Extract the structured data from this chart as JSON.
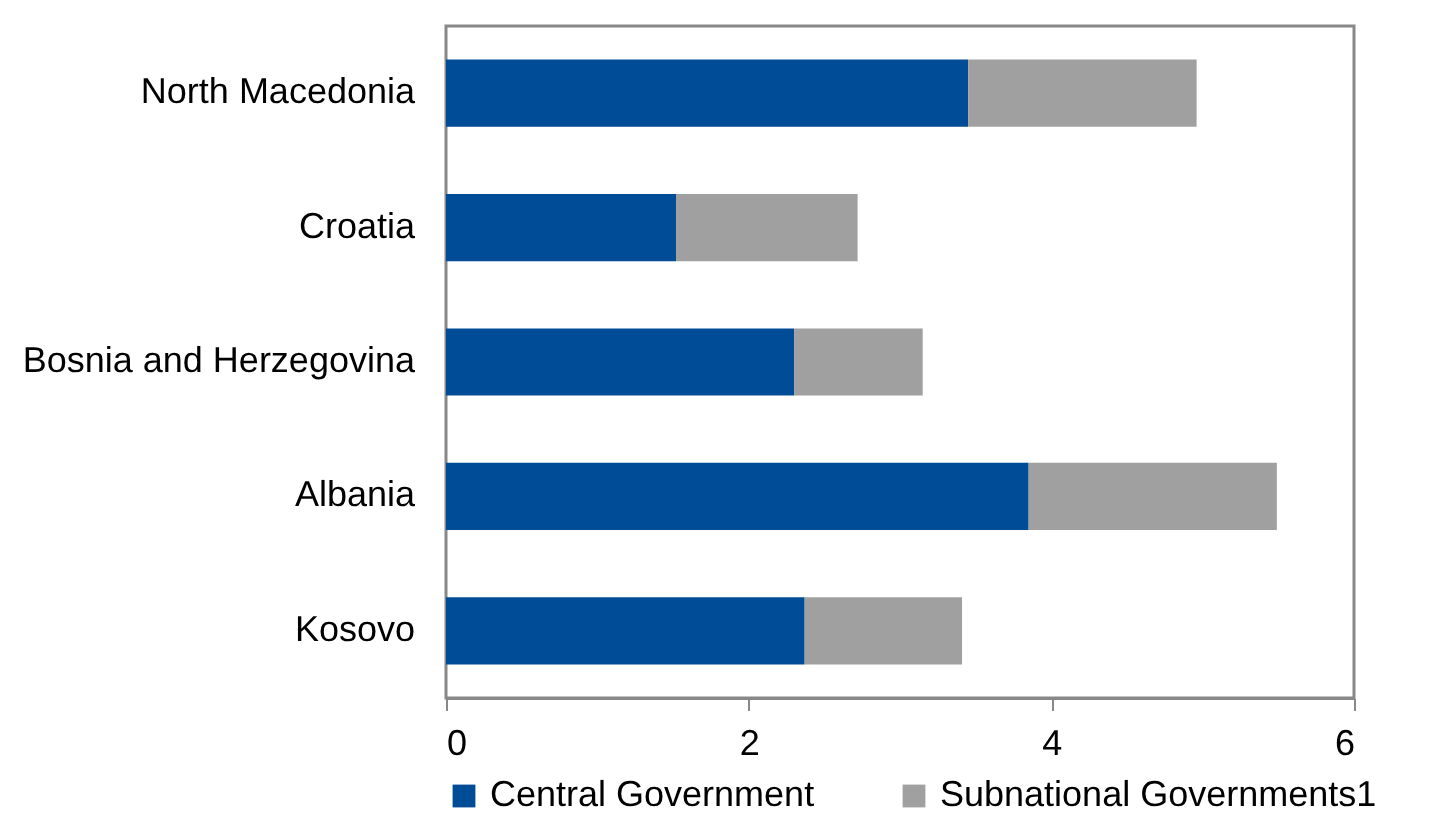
{
  "chart_data": {
    "type": "bar",
    "orientation": "horizontal",
    "stacked": true,
    "categories": [
      "North Macedonia",
      "Croatia",
      "Bosnia and Herzegovina",
      "Albania",
      "Kosovo"
    ],
    "series": [
      {
        "name": "Central Government",
        "color": "#004c97",
        "values": [
          3.45,
          1.52,
          2.3,
          3.85,
          2.37
        ]
      },
      {
        "name": "Subnational Governments1",
        "color": "#a0a0a0",
        "values": [
          1.51,
          1.2,
          0.85,
          1.64,
          1.04
        ]
      }
    ],
    "xlim": [
      0,
      6
    ],
    "xticks": [
      0,
      2,
      4,
      6
    ],
    "legend": "bottom",
    "grid": false
  }
}
